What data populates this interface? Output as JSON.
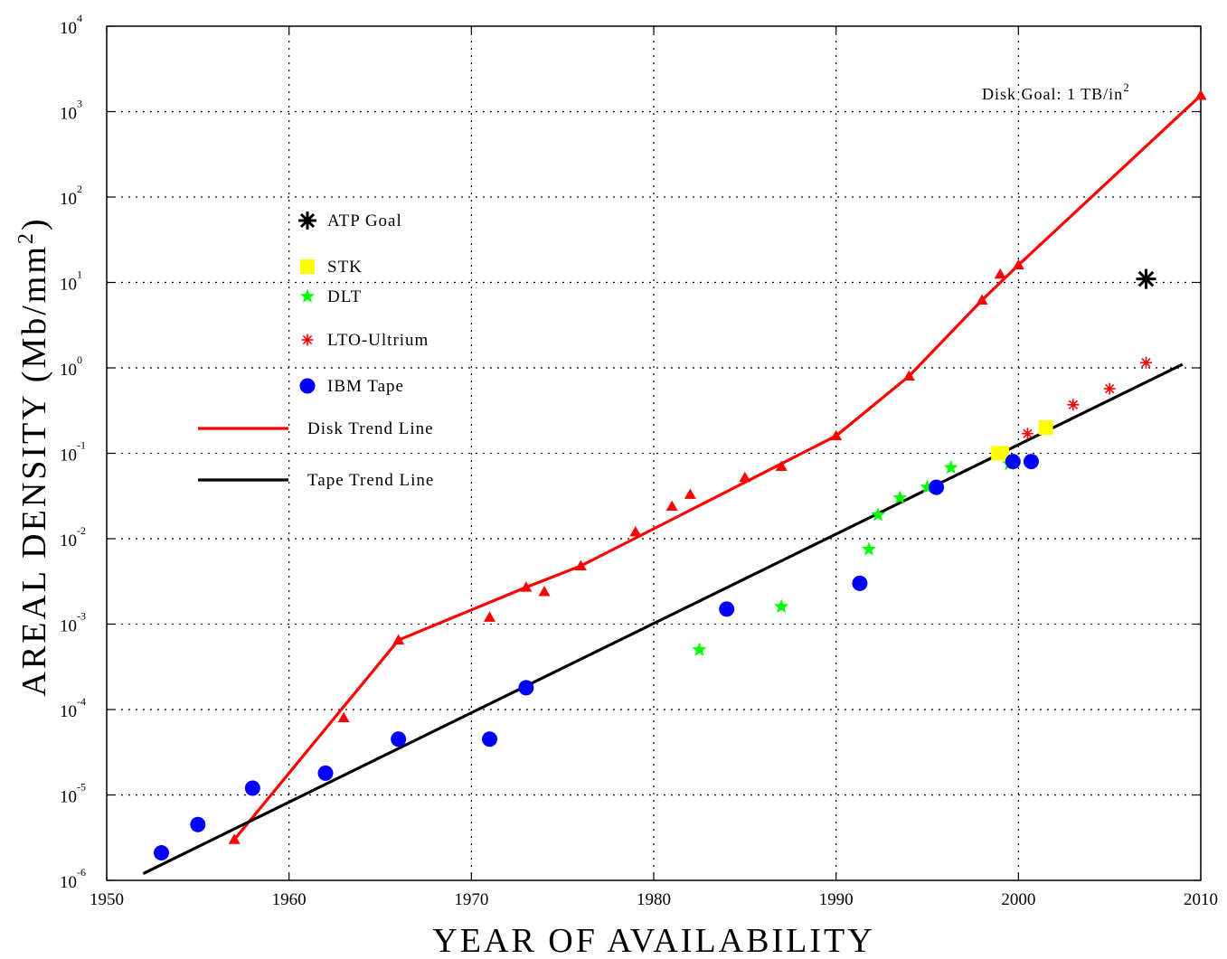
{
  "chart_data": {
    "type": "scatter",
    "title": "",
    "xlabel": "YEAR OF AVAILABILITY",
    "ylabel_main": "AREAL DENSITY (Mb/mm",
    "ylabel_sup": "2",
    "ylabel_close": ")",
    "xlim": [
      1950,
      2010
    ],
    "ylim_exp": [
      -6,
      4
    ],
    "yscale": "log",
    "grid": true,
    "legend_position": "upper-left",
    "x_ticks": [
      "1950",
      "1960",
      "1970",
      "1980",
      "1990",
      "2000",
      "2010"
    ],
    "y_ticks": [
      {
        "base": "10",
        "exp": "-6"
      },
      {
        "base": "10",
        "exp": "-5"
      },
      {
        "base": "10",
        "exp": "-4"
      },
      {
        "base": "10",
        "exp": "-3"
      },
      {
        "base": "10",
        "exp": "-2"
      },
      {
        "base": "10",
        "exp": "-1"
      },
      {
        "base": "10",
        "exp": "0"
      },
      {
        "base": "10",
        "exp": "1"
      },
      {
        "base": "10",
        "exp": "2"
      },
      {
        "base": "10",
        "exp": "3"
      },
      {
        "base": "10",
        "exp": "4"
      }
    ],
    "series": [
      {
        "name": "ATP Goal",
        "marker": "asterisk",
        "color": "#000000",
        "points": [
          [
            2007,
            11
          ]
        ]
      },
      {
        "name": "STK",
        "marker": "square",
        "color": "#ffff00",
        "points": [
          [
            1998.9,
            0.1
          ],
          [
            1999.1,
            0.1
          ],
          [
            2001.5,
            0.2
          ]
        ]
      },
      {
        "name": "DLT",
        "marker": "star",
        "color": "#00ff00",
        "points": [
          [
            1982.5,
            0.0005
          ],
          [
            1987,
            0.0016
          ],
          [
            1991.8,
            0.0075
          ],
          [
            1992.3,
            0.019
          ],
          [
            1993.5,
            0.03
          ],
          [
            1995,
            0.04
          ],
          [
            1996.3,
            0.068
          ],
          [
            1999.5,
            0.075
          ]
        ]
      },
      {
        "name": "LTO-Ultrium",
        "marker": "asterisk",
        "color": "#ff0000",
        "points": [
          [
            2000.5,
            0.17
          ],
          [
            2003,
            0.37
          ],
          [
            2005,
            0.57
          ],
          [
            2007,
            1.15
          ]
        ]
      },
      {
        "name": "IBM Tape",
        "marker": "circle",
        "color": "#0000ff",
        "points": [
          [
            1953,
            2.1e-06
          ],
          [
            1955,
            4.5e-06
          ],
          [
            1958,
            1.2e-05
          ],
          [
            1962,
            1.8e-05
          ],
          [
            1966,
            4.5e-05
          ],
          [
            1971,
            4.5e-05
          ],
          [
            1973,
            0.00018
          ],
          [
            1984,
            0.0015
          ],
          [
            1991.3,
            0.003
          ],
          [
            1995.5,
            0.04
          ],
          [
            1999.7,
            0.08
          ],
          [
            2000.7,
            0.08
          ]
        ]
      },
      {
        "name": "Disk",
        "marker": "triangle",
        "color": "#ff0000",
        "points": [
          [
            1957,
            3e-06
          ],
          [
            1963,
            8e-05
          ],
          [
            1966,
            0.00065
          ],
          [
            1971,
            0.0012
          ],
          [
            1973,
            0.0027
          ],
          [
            1974,
            0.0024
          ],
          [
            1976,
            0.0048
          ],
          [
            1979,
            0.012
          ],
          [
            1981,
            0.024
          ],
          [
            1982,
            0.033
          ],
          [
            1985,
            0.052
          ],
          [
            1987,
            0.07
          ],
          [
            1990,
            0.16
          ],
          [
            1994,
            0.8
          ],
          [
            1998,
            6.2
          ],
          [
            1999,
            12.5
          ],
          [
            2000,
            16
          ],
          [
            2010,
            1550
          ]
        ]
      }
    ],
    "trend_lines": [
      {
        "name": "Disk Trend Line",
        "color": "#ff0000",
        "points": [
          [
            1957,
            3e-06
          ],
          [
            1966,
            0.00065
          ],
          [
            1973,
            0.0027
          ],
          [
            1976,
            0.0048
          ],
          [
            1990,
            0.16
          ],
          [
            1994,
            0.8
          ],
          [
            1998,
            6.2
          ],
          [
            2000,
            16
          ],
          [
            2010,
            1550
          ]
        ]
      },
      {
        "name": "Tape Trend Line",
        "color": "#000000",
        "points": [
          [
            1952,
            1.2e-06
          ],
          [
            2009,
            1.1
          ]
        ]
      }
    ],
    "legend": [
      {
        "label": "ATP Goal",
        "symbol": "asterisk",
        "color": "#000000"
      },
      {
        "label": "STK",
        "symbol": "square",
        "color": "#ffff00"
      },
      {
        "label": "DLT",
        "symbol": "star",
        "color": "#00ff00"
      },
      {
        "label": "LTO-Ultrium",
        "symbol": "asterisk",
        "color": "#ff0000"
      },
      {
        "label": "IBM Tape",
        "symbol": "circle",
        "color": "#0000ff"
      },
      {
        "label": "Disk Trend Line",
        "symbol": "line",
        "color": "#ff0000"
      },
      {
        "label": "Tape Trend Line",
        "symbol": "line",
        "color": "#000000"
      }
    ],
    "annotation": {
      "text": "Disk Goal: 1 TB/in",
      "sup": "2",
      "x": 2010,
      "y": 1550
    }
  }
}
